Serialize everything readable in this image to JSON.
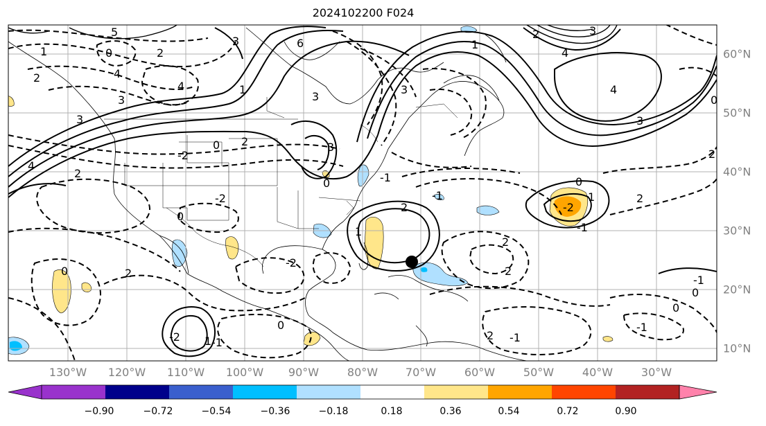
{
  "title": "2024102200 F024",
  "map": {
    "lon_labels": [
      "130°W",
      "120°W",
      "110°W",
      "100°W",
      "90°W",
      "80°W",
      "70°W",
      "60°W",
      "50°W",
      "40°W",
      "30°W"
    ],
    "lat_labels": [
      "60°N",
      "50°N",
      "40°N",
      "30°N",
      "20°N",
      "10°N"
    ],
    "contour_labels": [
      "4",
      "3",
      "4",
      "2",
      "1",
      "0",
      "4",
      "5",
      "6",
      "3",
      "2",
      "0",
      "3",
      "1",
      "3",
      "1",
      "2",
      "4",
      "3",
      "4",
      "3",
      "0",
      "2",
      "2",
      "-1",
      "0",
      "-2",
      "2",
      "2",
      "2",
      "-2",
      "0",
      "-1",
      "-2",
      "-1",
      "0",
      "0",
      "-1",
      "-2",
      "-2",
      "-1",
      "-1",
      "0",
      "2",
      "1",
      "2",
      "3",
      "3",
      "1",
      "2",
      "0",
      "-1",
      "0",
      "1",
      "2"
    ],
    "storm_marker": "black-dot"
  },
  "colorbar": {
    "ticks": [
      "−0.90",
      "−0.72",
      "−0.54",
      "−0.36",
      "−0.18",
      "0.18",
      "0.36",
      "0.54",
      "0.72",
      "0.90"
    ],
    "colors": [
      "#9932cc",
      "#00008b",
      "#3a5fcd",
      "#00bfff",
      "#b0e0ff",
      "#ffffff",
      "#ffe68a",
      "#ffa500",
      "#ff4500",
      "#b22222",
      "#ff82ab"
    ]
  }
}
